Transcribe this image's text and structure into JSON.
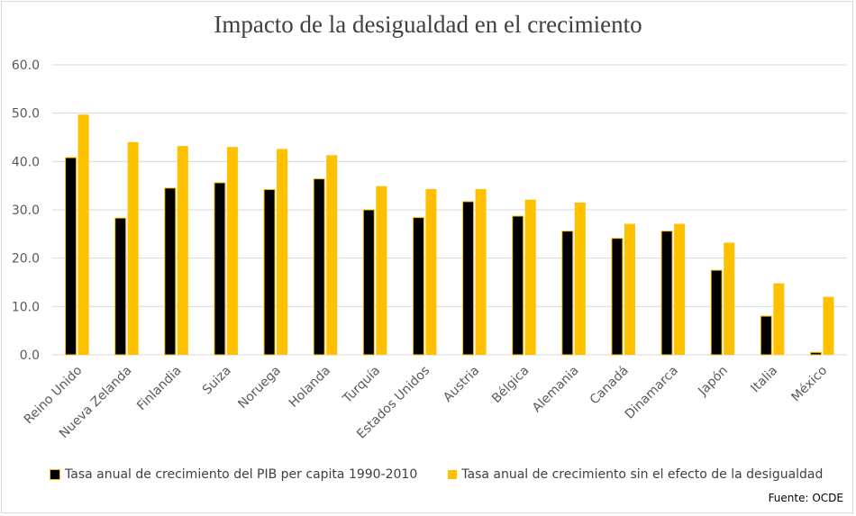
{
  "chart_data": {
    "type": "bar",
    "title": "Impacto de la desigualdad en el crecimiento",
    "categories": [
      "Reino Unido",
      "Nueva Zelanda",
      "Finlandia",
      "Suiza",
      "Noruega",
      "Holanda",
      "Turquía",
      "Estados Unidos",
      "Austria",
      "Bélgica",
      "Alemania",
      "Canadá",
      "Dinamarca",
      "Japón",
      "Italia",
      "México"
    ],
    "series": [
      {
        "name": "Tasa anual de crecimiento del PIB per capita 1990-2010",
        "color": "#000000",
        "values": [
          40.8,
          28.3,
          34.5,
          35.6,
          34.2,
          36.4,
          30.0,
          28.4,
          31.7,
          28.7,
          25.6,
          24.1,
          25.6,
          17.5,
          8.0,
          0.5
        ]
      },
      {
        "name": "Tasa anual de crecimiento sin el efecto de la desigualdad",
        "color": "#FFC000",
        "values": [
          49.7,
          44.0,
          43.2,
          43.0,
          42.6,
          41.3,
          34.9,
          34.3,
          34.3,
          32.1,
          31.5,
          27.1,
          27.1,
          23.2,
          14.8,
          12.0
        ]
      }
    ],
    "yticks": [
      "0.0",
      "10.0",
      "20.0",
      "30.0",
      "40.0",
      "50.0",
      "60.0"
    ],
    "ylim": [
      0,
      60
    ],
    "grid": true,
    "legend_position": "bottom",
    "xlabel": "",
    "ylabel": ""
  },
  "source_note": "Fuente: OCDE"
}
